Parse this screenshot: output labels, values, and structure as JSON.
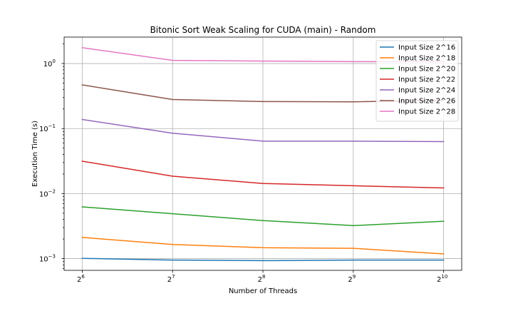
{
  "chart_data": {
    "type": "line",
    "title": "Bitonic Sort Weak Scaling for CUDA (main) - Random",
    "xlabel": "Number of Threads",
    "ylabel": "Execution Time (s)",
    "xscale": "log2",
    "yscale": "log10",
    "x": [
      64,
      128,
      256,
      512,
      1024
    ],
    "x_ticks": [
      {
        "base": "2",
        "exp": "6"
      },
      {
        "base": "2",
        "exp": "7"
      },
      {
        "base": "2",
        "exp": "8"
      },
      {
        "base": "2",
        "exp": "9"
      },
      {
        "base": "2",
        "exp": "10"
      }
    ],
    "y_ticks": [
      {
        "value": 0.001,
        "base": "10",
        "exp": "−3"
      },
      {
        "value": 0.01,
        "base": "10",
        "exp": "−2"
      },
      {
        "value": 0.1,
        "base": "10",
        "exp": "−1"
      },
      {
        "value": 1,
        "base": "10",
        "exp": "0"
      }
    ],
    "grid": true,
    "legend_position": "top-right",
    "series": [
      {
        "name": "Input Size 2^16",
        "color": "#1f77b4",
        "values": [
          0.00101,
          0.00095,
          0.00093,
          0.00095,
          0.00095
        ]
      },
      {
        "name": "Input Size 2^18",
        "color": "#ff7f0e",
        "values": [
          0.00212,
          0.00165,
          0.00147,
          0.00144,
          0.00118
        ]
      },
      {
        "name": "Input Size 2^20",
        "color": "#2ca02c",
        "values": [
          0.00625,
          0.0049,
          0.00385,
          0.00322,
          0.00375
        ]
      },
      {
        "name": "Input Size 2^22",
        "color": "#d62728",
        "values": [
          0.0315,
          0.0185,
          0.0143,
          0.0132,
          0.0122
        ]
      },
      {
        "name": "Input Size 2^24",
        "color": "#9467bd",
        "values": [
          0.138,
          0.085,
          0.064,
          0.064,
          0.063
        ]
      },
      {
        "name": "Input Size 2^26",
        "color": "#8c564b",
        "values": [
          0.47,
          0.28,
          0.26,
          0.258,
          0.27
        ]
      },
      {
        "name": "Input Size 2^28",
        "color": "#e377c2",
        "values": [
          1.75,
          1.12,
          1.09,
          1.07,
          1.07
        ]
      }
    ]
  }
}
